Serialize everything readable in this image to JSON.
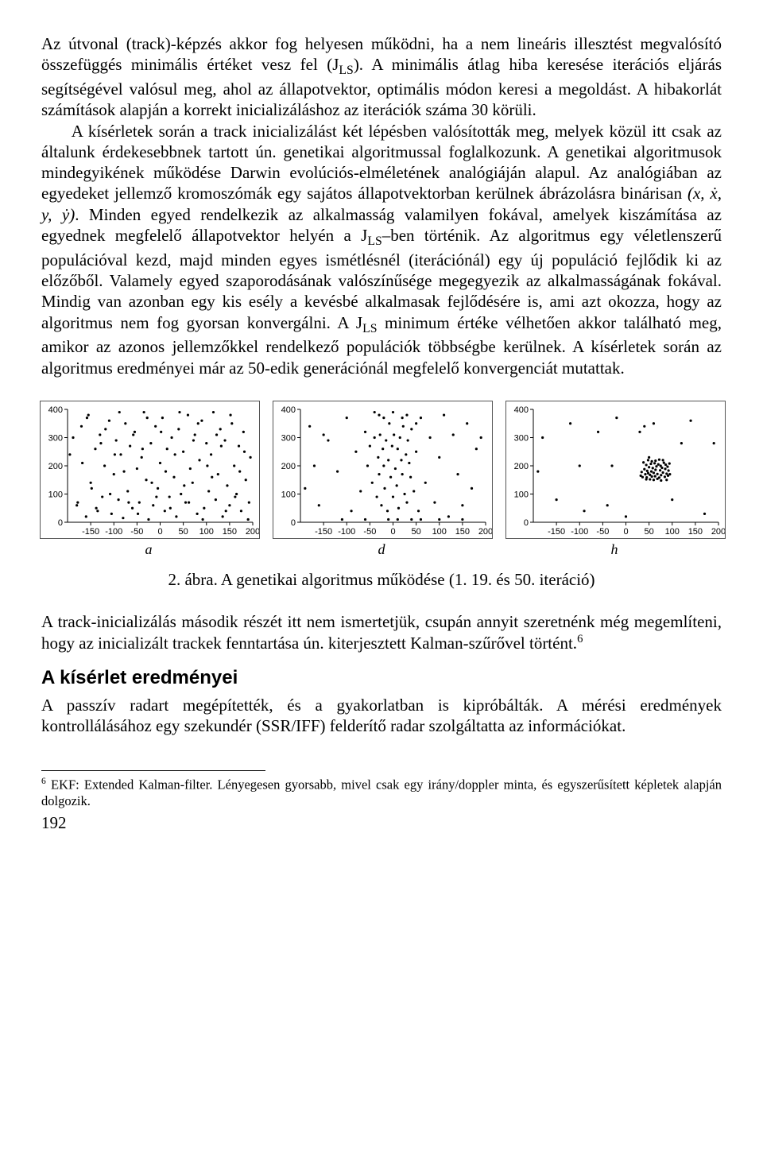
{
  "paragraphs": {
    "p1a": "Az útvonal (track)-képzés akkor fog helyesen működni, ha a nem lineáris illesztést megvalósító összefüggés minimális értéket vesz fel (J",
    "p1a_sub": "LS",
    "p1b": "). A minimális átlag hiba keresése iterációs eljárás segítségével valósul meg, ahol az állapotvektor, optimális módon keresi a megoldást. A hibakorlát számítások alapján a korrekt inicializáláshoz az iterációk száma 30 körüli.",
    "p2a": "A kísérletek során a track inicializálást két lépésben valósították meg, melyek közül itt csak az általunk érdekesebbnek tartott ún. genetikai algoritmussal foglalkozunk. A genetikai algoritmusok mindegyikének működése Darwin evolúciós-elméletének analógiáján alapul. Az analógiában az egyedeket jellemző kromoszómák egy sajátos állapotvektorban kerülnek ábrázolásra binárisan",
    "p2_math": "(x, ẋ, y, ẏ)",
    "p2b": ". Minden egyed rendelkezik az alkalmasság valamilyen fokával, amelyek kiszámítása az egyednek megfelelő állapotvektor helyén a J",
    "p2b_sub": "LS",
    "p2c": "–ben történik. Az algoritmus egy véletlenszerű populációval kezd, majd minden egyes ismétlésnél (iterációnál) egy új populáció fejlődik ki az előzőből. Valamely egyed szaporodásának valószínűsége megegyezik az alkalmasságának fokával. Mindig van azonban egy kis esély a kevésbé alkalmasak fejlődésére is, ami azt okozza, hogy az algoritmus nem fog gyorsan konvergálni. A J",
    "p2c_sub": "LS",
    "p2d": " minimum értéke vélhetően akkor található meg, amikor az azonos jellemzőkkel rendelkező populációk többségbe kerülnek. A kísérletek során az algoritmus eredményei már az 50-edik generációnál megfelelő konvergenciát mutattak.",
    "p3a": "A track-inicializálás második részét itt nem ismertetjük, csupán annyit szeretnénk még megemlíteni, hogy az inicializált trackek fenntartása ún. kiterjesztett Kalman-szűrővel történt.",
    "p3_sup": "6",
    "p4": "A passzív radart megépítették, és a gyakorlatban is kipróbálták. A mérési eredmények kontrollálásához egy szekundér (SSR/IFF) felderítő radar szolgáltatta az információkat."
  },
  "section_heading": "A kísérlet eredményei",
  "figure": {
    "caption": "2. ábra. A genetikai algoritmus működése (1. 19. és 50. iteráció)",
    "sublabels": [
      "a",
      "d",
      "h"
    ],
    "xlim": [
      -200,
      200
    ],
    "ylim": [
      0,
      400
    ],
    "xticks": [
      -150,
      -100,
      -50,
      0,
      50,
      100,
      150,
      200
    ],
    "yticks": [
      0,
      100,
      200,
      300,
      400
    ],
    "tick_fontsize": 11,
    "point_color": "#000",
    "point_radius": 1.6,
    "background": "#ffffff",
    "axis_color": "#000",
    "plots": [
      {
        "id": "a",
        "points": [
          [
            -180,
            60
          ],
          [
            -170,
            340
          ],
          [
            -160,
            20
          ],
          [
            -155,
            380
          ],
          [
            -150,
            140
          ],
          [
            -140,
            260
          ],
          [
            -135,
            40
          ],
          [
            -130,
            310
          ],
          [
            -125,
            90
          ],
          [
            -120,
            200
          ],
          [
            -110,
            360
          ],
          [
            -105,
            30
          ],
          [
            -100,
            170
          ],
          [
            -95,
            290
          ],
          [
            -90,
            80
          ],
          [
            -85,
            240
          ],
          [
            -80,
            15
          ],
          [
            -75,
            350
          ],
          [
            -70,
            110
          ],
          [
            -65,
            270
          ],
          [
            -60,
            50
          ],
          [
            -55,
            320
          ],
          [
            -50,
            190
          ],
          [
            -45,
            70
          ],
          [
            -40,
            230
          ],
          [
            -35,
            390
          ],
          [
            -30,
            150
          ],
          [
            -25,
            10
          ],
          [
            -20,
            280
          ],
          [
            -15,
            60
          ],
          [
            -10,
            340
          ],
          [
            -5,
            120
          ],
          [
            0,
            210
          ],
          [
            5,
            370
          ],
          [
            10,
            40
          ],
          [
            15,
            260
          ],
          [
            20,
            90
          ],
          [
            25,
            300
          ],
          [
            30,
            160
          ],
          [
            35,
            20
          ],
          [
            40,
            330
          ],
          [
            45,
            100
          ],
          [
            50,
            250
          ],
          [
            55,
            70
          ],
          [
            60,
            380
          ],
          [
            65,
            190
          ],
          [
            70,
            140
          ],
          [
            75,
            310
          ],
          [
            80,
            30
          ],
          [
            85,
            220
          ],
          [
            90,
            360
          ],
          [
            95,
            50
          ],
          [
            100,
            280
          ],
          [
            105,
            110
          ],
          [
            110,
            240
          ],
          [
            115,
            390
          ],
          [
            120,
            80
          ],
          [
            125,
            170
          ],
          [
            130,
            330
          ],
          [
            135,
            20
          ],
          [
            140,
            290
          ],
          [
            145,
            130
          ],
          [
            150,
            60
          ],
          [
            155,
            350
          ],
          [
            160,
            200
          ],
          [
            165,
            100
          ],
          [
            170,
            270
          ],
          [
            175,
            40
          ],
          [
            180,
            320
          ],
          [
            185,
            150
          ],
          [
            190,
            10
          ],
          [
            195,
            230
          ],
          [
            -188,
            300
          ],
          [
            -178,
            70
          ],
          [
            -168,
            210
          ],
          [
            -158,
            370
          ],
          [
            -148,
            120
          ],
          [
            -138,
            50
          ],
          [
            -128,
            280
          ],
          [
            -118,
            330
          ],
          [
            -108,
            100
          ],
          [
            -98,
            240
          ],
          [
            -88,
            390
          ],
          [
            -78,
            180
          ],
          [
            -68,
            70
          ],
          [
            -58,
            310
          ],
          [
            -48,
            30
          ],
          [
            -38,
            260
          ],
          [
            -28,
            370
          ],
          [
            -18,
            140
          ],
          [
            -8,
            90
          ],
          [
            2,
            320
          ],
          [
            12,
            180
          ],
          [
            22,
            50
          ],
          [
            32,
            240
          ],
          [
            42,
            390
          ],
          [
            52,
            130
          ],
          [
            62,
            70
          ],
          [
            72,
            290
          ],
          [
            82,
            350
          ],
          [
            92,
            10
          ],
          [
            102,
            200
          ],
          [
            112,
            160
          ],
          [
            122,
            310
          ],
          [
            132,
            270
          ],
          [
            142,
            40
          ],
          [
            152,
            380
          ],
          [
            162,
            90
          ],
          [
            172,
            180
          ],
          [
            182,
            250
          ],
          [
            192,
            70
          ],
          [
            -195,
            240
          ]
        ]
      },
      {
        "id": "d",
        "points": [
          [
            -180,
            340
          ],
          [
            -160,
            60
          ],
          [
            -140,
            290
          ],
          [
            -120,
            180
          ],
          [
            -100,
            370
          ],
          [
            -90,
            40
          ],
          [
            -80,
            250
          ],
          [
            -70,
            110
          ],
          [
            -60,
            320
          ],
          [
            -55,
            200
          ],
          [
            -50,
            270
          ],
          [
            -45,
            140
          ],
          [
            -40,
            300
          ],
          [
            -35,
            90
          ],
          [
            -32,
            230
          ],
          [
            -30,
            170
          ],
          [
            -28,
            310
          ],
          [
            -25,
            60
          ],
          [
            -22,
            260
          ],
          [
            -20,
            200
          ],
          [
            -18,
            120
          ],
          [
            -15,
            290
          ],
          [
            -12,
            40
          ],
          [
            -10,
            220
          ],
          [
            -8,
            350
          ],
          [
            -5,
            160
          ],
          [
            -2,
            270
          ],
          [
            0,
            90
          ],
          [
            2,
            310
          ],
          [
            5,
            190
          ],
          [
            8,
            130
          ],
          [
            10,
            260
          ],
          [
            12,
            50
          ],
          [
            15,
            300
          ],
          [
            18,
            220
          ],
          [
            20,
            170
          ],
          [
            22,
            340
          ],
          [
            25,
            100
          ],
          [
            28,
            240
          ],
          [
            30,
            70
          ],
          [
            32,
            290
          ],
          [
            35,
            210
          ],
          [
            38,
            160
          ],
          [
            40,
            330
          ],
          [
            45,
            110
          ],
          [
            50,
            250
          ],
          [
            55,
            40
          ],
          [
            60,
            370
          ],
          [
            70,
            140
          ],
          [
            80,
            300
          ],
          [
            90,
            70
          ],
          [
            100,
            230
          ],
          [
            110,
            380
          ],
          [
            120,
            20
          ],
          [
            130,
            310
          ],
          [
            140,
            170
          ],
          [
            150,
            60
          ],
          [
            160,
            350
          ],
          [
            170,
            120
          ],
          [
            180,
            260
          ],
          [
            -170,
            200
          ],
          [
            -190,
            120
          ],
          [
            190,
            300
          ],
          [
            -30,
            380
          ],
          [
            30,
            380
          ],
          [
            10,
            10
          ],
          [
            -10,
            10
          ],
          [
            40,
            10
          ],
          [
            -40,
            390
          ],
          [
            0,
            390
          ],
          [
            20,
            370
          ],
          [
            -20,
            370
          ],
          [
            50,
            350
          ],
          [
            -150,
            310
          ],
          [
            150,
            10
          ],
          [
            -110,
            10
          ],
          [
            100,
            10
          ],
          [
            -60,
            10
          ],
          [
            60,
            10
          ]
        ]
      },
      {
        "id": "h",
        "points": [
          [
            -180,
            300
          ],
          [
            -150,
            80
          ],
          [
            -120,
            350
          ],
          [
            -90,
            40
          ],
          [
            -60,
            320
          ],
          [
            -40,
            60
          ],
          [
            -20,
            370
          ],
          [
            0,
            20
          ],
          [
            140,
            360
          ],
          [
            170,
            30
          ],
          [
            190,
            280
          ],
          [
            -190,
            180
          ],
          [
            -100,
            200
          ],
          [
            120,
            280
          ],
          [
            40,
            340
          ],
          [
            30,
            320
          ],
          [
            60,
            350
          ],
          [
            -30,
            200
          ],
          [
            100,
            80
          ],
          [
            32,
            165
          ],
          [
            34,
            178
          ],
          [
            36,
            160
          ],
          [
            38,
            212
          ],
          [
            40,
            188
          ],
          [
            42,
            170
          ],
          [
            44,
            203
          ],
          [
            45,
            159
          ],
          [
            46,
            182
          ],
          [
            48,
            174
          ],
          [
            50,
            195
          ],
          [
            52,
            168
          ],
          [
            54,
            207
          ],
          [
            55,
            180
          ],
          [
            56,
            162
          ],
          [
            58,
            192
          ],
          [
            60,
            175
          ],
          [
            62,
            209
          ],
          [
            63,
            163
          ],
          [
            64,
            186
          ],
          [
            66,
            198
          ],
          [
            68,
            171
          ],
          [
            70,
            205
          ],
          [
            72,
            158
          ],
          [
            74,
            184
          ],
          [
            75,
            200
          ],
          [
            76,
            167
          ],
          [
            78,
            193
          ],
          [
            80,
            176
          ],
          [
            82,
            211
          ],
          [
            84,
            161
          ],
          [
            85,
            189
          ],
          [
            86,
            204
          ],
          [
            88,
            172
          ],
          [
            90,
            197
          ],
          [
            91,
            165
          ],
          [
            92,
            183
          ],
          [
            94,
            208
          ],
          [
            95,
            170
          ],
          [
            48,
            220
          ],
          [
            52,
            152
          ],
          [
            56,
            216
          ],
          [
            60,
            150
          ],
          [
            64,
            218
          ],
          [
            68,
            154
          ],
          [
            72,
            222
          ],
          [
            76,
            148
          ],
          [
            80,
            220
          ],
          [
            44,
            152
          ],
          [
            88,
            150
          ],
          [
            50,
            230
          ]
        ]
      }
    ]
  },
  "footnote": {
    "marker": "6",
    "text": " EKF: Extended Kalman-filter. Lényegesen gyorsabb, mivel csak egy irány/doppler minta, és egyszerűsített képletek alapján dolgozik."
  },
  "page_number": "192"
}
